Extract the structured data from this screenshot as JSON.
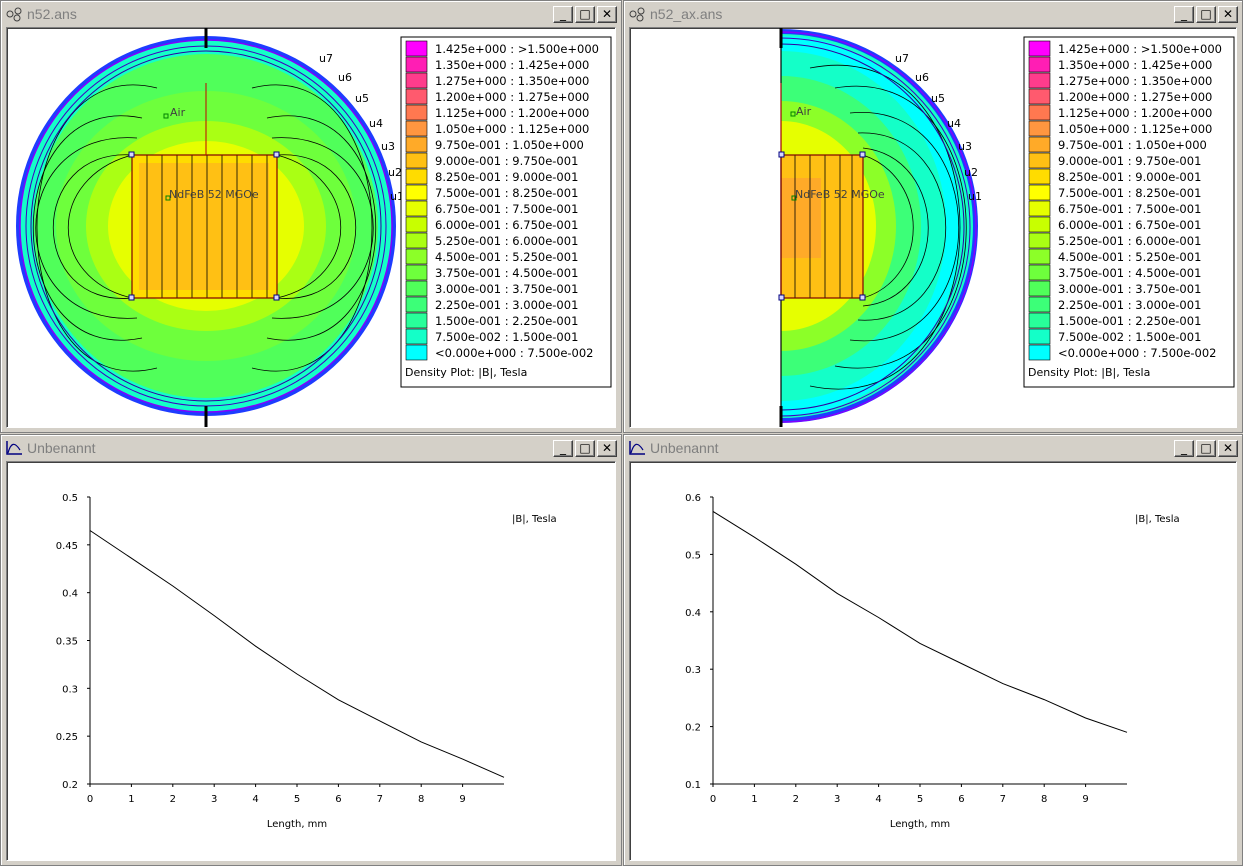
{
  "windows": {
    "w1": {
      "title": "n52.ans"
    },
    "w2": {
      "title": "n52_ax.ans"
    },
    "w3": {
      "title": "Unbenannt"
    },
    "w4": {
      "title": "Unbenannt"
    }
  },
  "controls": {
    "minimize": "_",
    "maximize": "□",
    "close": "✕"
  },
  "field_labels": {
    "air": "Air",
    "magnet": "NdFeB 52 MGOe",
    "boundaries": [
      "u7",
      "u6",
      "u5",
      "u4",
      "u3",
      "u2",
      "u1"
    ]
  },
  "legend": {
    "entries": [
      {
        "label": "1.425e+000 : >1.500e+000",
        "color": "#ff00ff"
      },
      {
        "label": "1.350e+000 : 1.425e+000",
        "color": "#ff1eb4"
      },
      {
        "label": "1.275e+000 : 1.350e+000",
        "color": "#ff3c8c"
      },
      {
        "label": "1.200e+000 : 1.275e+000",
        "color": "#ff5a6e"
      },
      {
        "label": "1.125e+000 : 1.200e+000",
        "color": "#ff7850"
      },
      {
        "label": "1.050e+000 : 1.125e+000",
        "color": "#ff9640"
      },
      {
        "label": "9.750e-001 : 1.050e+000",
        "color": "#ffaa28"
      },
      {
        "label": "9.000e-001 : 9.750e-001",
        "color": "#ffc014"
      },
      {
        "label": "8.250e-001 : 9.000e-001",
        "color": "#ffdc00"
      },
      {
        "label": "7.500e-001 : 8.250e-001",
        "color": "#ffff00"
      },
      {
        "label": "6.750e-001 : 7.500e-001",
        "color": "#e6ff00"
      },
      {
        "label": "6.000e-001 : 6.750e-001",
        "color": "#c8ff00"
      },
      {
        "label": "5.250e-001 : 6.000e-001",
        "color": "#aaff14"
      },
      {
        "label": "4.500e-001 : 5.250e-001",
        "color": "#8cff28"
      },
      {
        "label": "3.750e-001 : 4.500e-001",
        "color": "#6eff3c"
      },
      {
        "label": "3.000e-001 : 3.750e-001",
        "color": "#50ff5a"
      },
      {
        "label": "2.250e-001 : 3.000e-001",
        "color": "#3cff78"
      },
      {
        "label": "1.500e-001 : 2.250e-001",
        "color": "#28ff9a"
      },
      {
        "label": "7.500e-002 : 1.500e-001",
        "color": "#14ffc8"
      },
      {
        "label": "<0.000e+000 : 7.500e-002",
        "color": "#00ffff"
      }
    ],
    "caption": "Density Plot: |B|, Tesla"
  },
  "charts": [
    {
      "type": "line",
      "title": "|B|, Tesla",
      "xlabel": "Length, mm",
      "xticks": [
        "0",
        "1",
        "2",
        "3",
        "4",
        "5",
        "6",
        "7",
        "8",
        "9"
      ],
      "yticks": [
        "0.5",
        "0.45",
        "0.4",
        "0.35",
        "0.3",
        "0.25",
        "0.2"
      ],
      "ylim": [
        0.2,
        0.5
      ],
      "xlim": [
        0,
        10
      ],
      "x": [
        0,
        1,
        2,
        3,
        4,
        5,
        6,
        7,
        8,
        9,
        10
      ],
      "y": [
        0.465,
        0.436,
        0.407,
        0.376,
        0.344,
        0.315,
        0.288,
        0.266,
        0.244,
        0.226,
        0.207
      ]
    },
    {
      "type": "line",
      "title": "|B|, Tesla",
      "xlabel": "Length, mm",
      "xticks": [
        "0",
        "1",
        "2",
        "3",
        "4",
        "5",
        "6",
        "7",
        "8",
        "9"
      ],
      "yticks": [
        "0.6",
        "0.5",
        "0.4",
        "0.3",
        "0.2",
        "0.1"
      ],
      "ylim": [
        0.1,
        0.6
      ],
      "xlim": [
        0,
        10
      ],
      "x": [
        0,
        1,
        2,
        3,
        4,
        5,
        6,
        7,
        8,
        9,
        10
      ],
      "y": [
        0.575,
        0.53,
        0.483,
        0.432,
        0.39,
        0.345,
        0.31,
        0.275,
        0.247,
        0.215,
        0.19
      ]
    }
  ]
}
